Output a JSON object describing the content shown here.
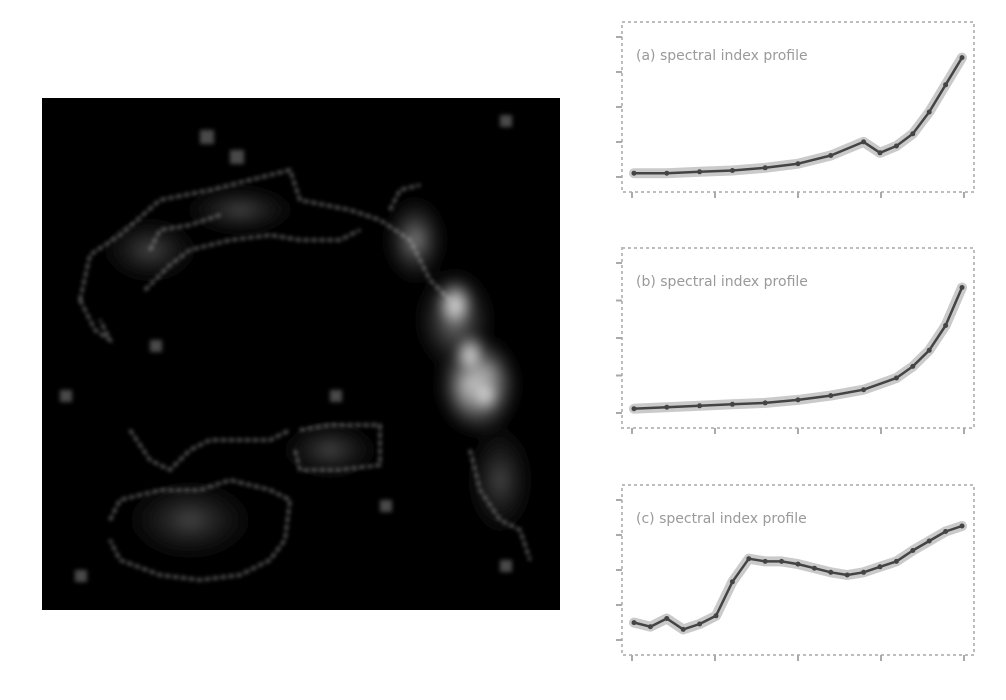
{
  "image": {
    "kind": "blurry low-resolution scientific figure",
    "background": "#ffffff",
    "colors": {
      "map_background": "#000000",
      "contour": "#cfcfcf",
      "plot_line": "#444444",
      "band": "#8a8a8a"
    }
  },
  "map": {
    "description": "dark square image with a bright curved arc of emission on the right and grey contour outlines"
  },
  "panels": [
    {
      "id": "a",
      "caption_line1": "(a) spectral index profile",
      "caption_line2": ""
    },
    {
      "id": "b",
      "caption_line1": "(b) spectral index profile",
      "caption_line2": ""
    },
    {
      "id": "c",
      "caption_line1": "(c) spectral index profile",
      "caption_line2": ""
    }
  ],
  "chart_data": [
    {
      "type": "line",
      "title": "",
      "xlabel": "",
      "ylabel": "",
      "grid": false,
      "series": [
        {
          "x": [
            0,
            0.1,
            0.2,
            0.3,
            0.4,
            0.5,
            0.6,
            0.7,
            0.75,
            0.8,
            0.85,
            0.9,
            0.95,
            1.0
          ],
          "y": [
            0.05,
            0.05,
            0.06,
            0.07,
            0.09,
            0.12,
            0.18,
            0.28,
            0.2,
            0.25,
            0.34,
            0.5,
            0.7,
            0.9
          ]
        }
      ]
    },
    {
      "type": "line",
      "title": "",
      "xlabel": "",
      "ylabel": "",
      "grid": false,
      "series": [
        {
          "x": [
            0,
            0.1,
            0.2,
            0.3,
            0.4,
            0.5,
            0.6,
            0.7,
            0.8,
            0.85,
            0.9,
            0.95,
            1.0
          ],
          "y": [
            0.05,
            0.06,
            0.07,
            0.08,
            0.09,
            0.11,
            0.14,
            0.18,
            0.26,
            0.34,
            0.45,
            0.62,
            0.88
          ]
        }
      ]
    },
    {
      "type": "line",
      "title": "",
      "xlabel": "",
      "ylabel": "",
      "grid": false,
      "series": [
        {
          "x": [
            0,
            0.05,
            0.1,
            0.15,
            0.2,
            0.25,
            0.3,
            0.35,
            0.4,
            0.45,
            0.5,
            0.55,
            0.6,
            0.65,
            0.7,
            0.75,
            0.8,
            0.85,
            0.9,
            0.95,
            1.0
          ],
          "y": [
            0.15,
            0.12,
            0.18,
            0.1,
            0.14,
            0.2,
            0.45,
            0.62,
            0.6,
            0.6,
            0.58,
            0.55,
            0.52,
            0.5,
            0.52,
            0.56,
            0.6,
            0.68,
            0.75,
            0.82,
            0.86
          ]
        }
      ]
    }
  ]
}
